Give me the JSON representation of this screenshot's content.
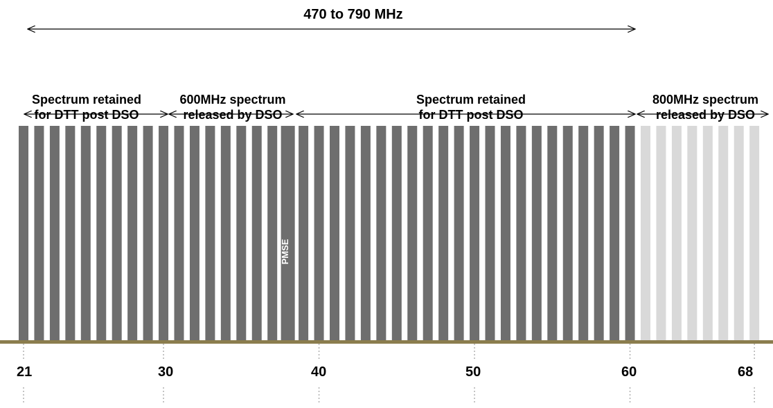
{
  "range_label": "470 to 790 MHz",
  "segments": [
    {
      "line1": "Spectrum retained",
      "line2": "for DTT post DSO"
    },
    {
      "line1": "600MHz spectrum",
      "line2": "released by DSO"
    },
    {
      "line1": "Spectrum retained",
      "line2": "for DTT post DSO"
    },
    {
      "line1": "800MHz spectrum",
      "line2": "released by DSO"
    }
  ],
  "pmse_label": "PMSE",
  "channels": {
    "first": 21,
    "last": 68,
    "pmse_channel": 38,
    "released_from": 61
  },
  "ticks": [
    {
      "label": "21",
      "channel": 21
    },
    {
      "label": "30",
      "channel": 30
    },
    {
      "label": "40",
      "channel": 40
    },
    {
      "label": "50",
      "channel": 50
    },
    {
      "label": "60",
      "channel": 60
    },
    {
      "label": "68",
      "channel": 68
    }
  ],
  "colors": {
    "retained_bar": "#6e6e6e",
    "released_bar": "#d9d9d9",
    "pmse_bar": "#6e6e6e",
    "baseline": "#8b7d4e",
    "arrow": "#000000",
    "guide": "#b0b0b0"
  }
}
